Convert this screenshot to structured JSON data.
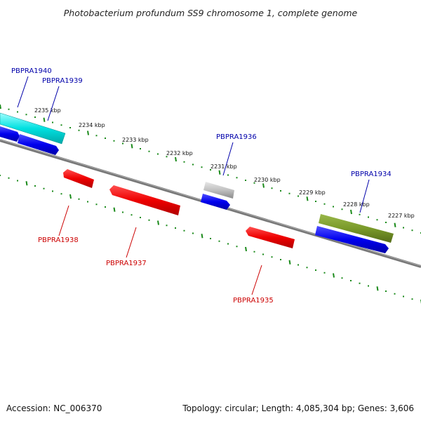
{
  "title": "Photobacterium profundum SS9 chromosome 1, complete genome",
  "footer": {
    "accession": "Accession: NC_006370",
    "topology": "Topology: circular; Length: 4,085,304 bp; Genes: 3,606"
  },
  "scale": {
    "ticks": [
      "2235 kbp",
      "2234 kbp",
      "2233 kbp",
      "2232 kbp",
      "2231 kbp",
      "2230 kbp",
      "2229 kbp",
      "2228 kbp",
      "2227 kbp"
    ]
  },
  "genes_forward": [
    {
      "name": "PBPRA1940",
      "color": "#00e0e0"
    },
    {
      "name": "PBPRA1939",
      "color": "#0000ee"
    },
    {
      "name": "PBPRA1936",
      "color": "#0000ee"
    },
    {
      "name": "PBPRA1934",
      "color": "#0000ee"
    }
  ],
  "genes_reverse": [
    {
      "name": "PBPRA1938",
      "color": "#ee0000"
    },
    {
      "name": "PBPRA1937",
      "color": "#ee0000"
    },
    {
      "name": "PBPRA1935",
      "color": "#ee0000"
    }
  ],
  "colors": {
    "forward_label": "#0000aa",
    "reverse_label": "#cc0000",
    "tick": "#1a8a1a",
    "backbone": "#777777",
    "gray_feature": "#c0c0c0",
    "olive_feature": "#7a9a2a"
  }
}
